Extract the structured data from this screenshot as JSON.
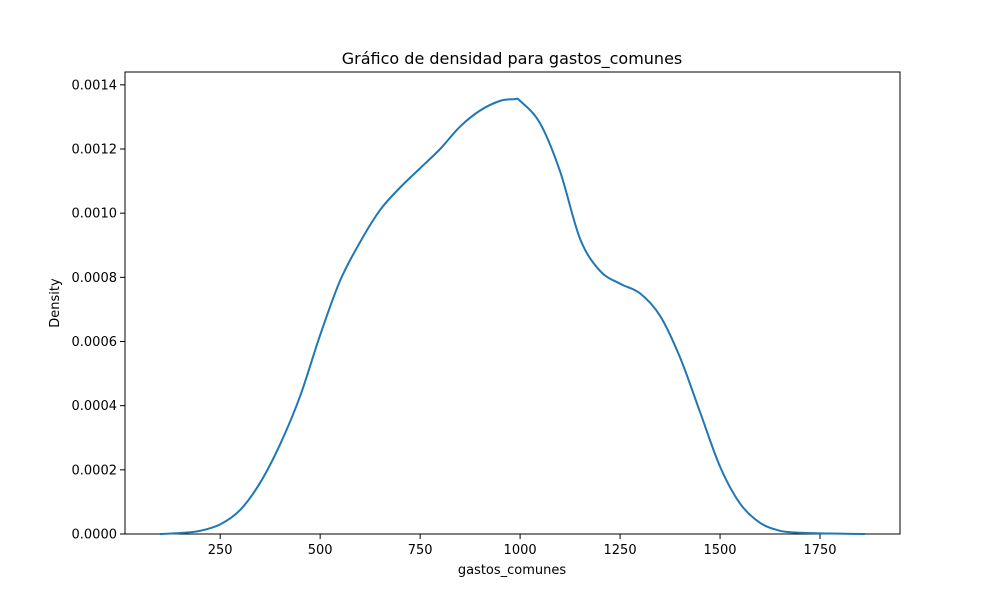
{
  "chart_data": {
    "type": "line",
    "title": "Gráfico de densidad para gastos_comunes",
    "xlabel": "gastos_comunes",
    "ylabel": "Density",
    "xlim": [
      12,
      1950
    ],
    "ylim": [
      0,
      0.00144
    ],
    "x_ticks": [
      250,
      500,
      750,
      1000,
      1250,
      1500,
      1750
    ],
    "x_tick_labels": [
      "250",
      "500",
      "750",
      "1000",
      "1250",
      "1500",
      "1750"
    ],
    "y_ticks": [
      0,
      0.0002,
      0.0004,
      0.0006,
      0.0008,
      0.001,
      0.0012,
      0.0014
    ],
    "y_tick_labels": [
      "0.0000",
      "0.0002",
      "0.0004",
      "0.0006",
      "0.0008",
      "0.0010",
      "0.0012",
      "0.0014"
    ],
    "grid": false,
    "series": [
      {
        "name": "gastos_comunes",
        "color": "#1f77b4",
        "x": [
          100,
          150,
          200,
          250,
          300,
          350,
          400,
          450,
          500,
          550,
          600,
          650,
          700,
          750,
          800,
          850,
          900,
          950,
          985,
          1000,
          1050,
          1100,
          1150,
          1200,
          1250,
          1300,
          1350,
          1400,
          1450,
          1500,
          1550,
          1600,
          1650,
          1700,
          1750,
          1800,
          1862
        ],
        "y": [
          0.0,
          3e-06,
          1e-05,
          3e-05,
          7.5e-05,
          0.00016,
          0.00028,
          0.00043,
          0.00062,
          0.00079,
          0.00091,
          0.00101,
          0.00108,
          0.00114,
          0.0012,
          0.00127,
          0.00132,
          0.00135,
          0.001355,
          0.00135,
          0.00128,
          0.00113,
          0.00092,
          0.00082,
          0.00078,
          0.00075,
          0.00068,
          0.00055,
          0.00038,
          0.00021,
          9.5e-05,
          3.5e-05,
          1e-05,
          4e-06,
          2e-06,
          1e-06,
          0.0
        ]
      }
    ]
  }
}
